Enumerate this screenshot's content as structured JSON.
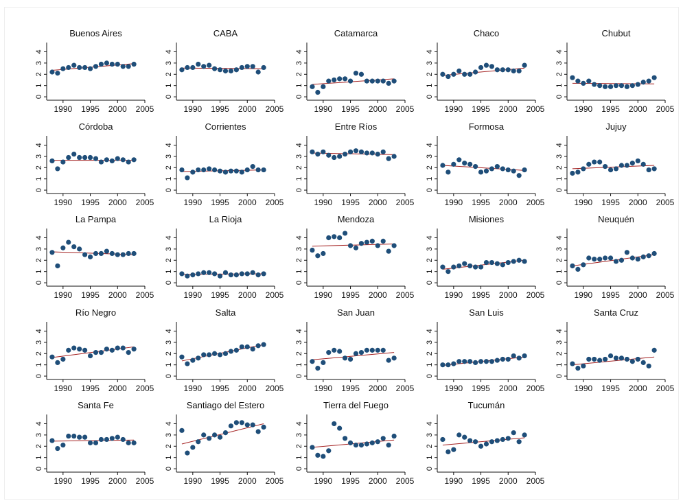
{
  "chart_data": {
    "type": "scatter",
    "layout": "small-multiples",
    "x_ticks": [
      1990,
      1995,
      2000,
      2005
    ],
    "y_ticks": [
      0,
      1,
      2,
      3,
      4
    ],
    "xlim": [
      1987,
      2005
    ],
    "ylim": [
      -0.3,
      4.7
    ],
    "years": [
      1988,
      1989,
      1990,
      1991,
      1992,
      1993,
      1994,
      1995,
      1996,
      1997,
      1998,
      1999,
      2000,
      2001,
      2002,
      2003
    ],
    "colors": {
      "marker": "#1f4e79",
      "fit_line": "#a32020",
      "axis": "#111111"
    },
    "panels": [
      {
        "name": "Buenos Aires",
        "values": [
          2.2,
          2.1,
          2.5,
          2.6,
          2.8,
          2.6,
          2.6,
          2.5,
          2.7,
          2.9,
          3.0,
          2.9,
          2.9,
          2.7,
          2.7,
          2.9
        ],
        "fit": [
          2.35,
          2.95
        ]
      },
      {
        "name": "CABA",
        "values": [
          2.4,
          2.6,
          2.6,
          2.9,
          2.7,
          2.8,
          2.5,
          2.4,
          2.3,
          2.3,
          2.4,
          2.6,
          2.7,
          2.7,
          2.2,
          2.6
        ],
        "fit": [
          2.55,
          2.5
        ]
      },
      {
        "name": "Catamarca",
        "values": [
          0.9,
          0.4,
          0.9,
          1.4,
          1.5,
          1.6,
          1.6,
          1.4,
          2.1,
          2.0,
          1.4,
          1.4,
          1.4,
          1.4,
          1.2,
          1.4
        ],
        "fit": [
          1.1,
          1.6
        ]
      },
      {
        "name": "Chaco",
        "values": [
          2.0,
          1.8,
          2.0,
          2.3,
          2.0,
          2.0,
          2.2,
          2.6,
          2.8,
          2.7,
          2.4,
          2.4,
          2.4,
          2.3,
          2.3,
          2.8
        ],
        "fit": [
          1.9,
          2.55
        ]
      },
      {
        "name": "Chubut",
        "values": [
          1.7,
          1.4,
          1.2,
          1.4,
          1.1,
          1.0,
          0.9,
          0.9,
          1.0,
          1.0,
          0.9,
          1.0,
          1.1,
          1.3,
          1.4,
          1.7
        ],
        "fit": [
          1.2,
          1.15
        ]
      },
      {
        "name": "Córdoba",
        "values": [
          2.6,
          1.9,
          2.5,
          2.9,
          3.2,
          2.9,
          2.9,
          2.9,
          2.8,
          2.5,
          2.7,
          2.6,
          2.8,
          2.7,
          2.5,
          2.7
        ],
        "fit": [
          2.65,
          2.65
        ]
      },
      {
        "name": "Corrientes",
        "values": [
          1.8,
          1.1,
          1.6,
          1.8,
          1.8,
          1.9,
          1.8,
          1.7,
          1.6,
          1.7,
          1.7,
          1.6,
          1.8,
          2.1,
          1.8,
          1.8
        ],
        "fit": [
          1.65,
          1.8
        ]
      },
      {
        "name": "Entre Ríos",
        "values": [
          3.4,
          3.2,
          3.4,
          3.1,
          2.9,
          3.0,
          3.2,
          3.4,
          3.5,
          3.4,
          3.3,
          3.3,
          3.2,
          3.4,
          2.8,
          3.0
        ],
        "fit": [
          3.3,
          3.15
        ]
      },
      {
        "name": "Formosa",
        "values": [
          2.2,
          1.6,
          2.3,
          2.7,
          2.4,
          2.3,
          2.1,
          1.6,
          1.7,
          1.9,
          2.1,
          1.9,
          1.8,
          1.7,
          1.3,
          1.8
        ],
        "fit": [
          2.2,
          1.75
        ]
      },
      {
        "name": "Jujuy",
        "values": [
          1.5,
          1.6,
          1.9,
          2.3,
          2.5,
          2.5,
          2.1,
          1.8,
          1.9,
          2.2,
          2.2,
          2.4,
          2.6,
          2.3,
          1.8,
          1.9
        ],
        "fit": [
          1.9,
          2.2
        ]
      },
      {
        "name": "La Pampa",
        "values": [
          2.7,
          1.5,
          3.1,
          3.6,
          3.2,
          3.0,
          2.5,
          2.3,
          2.6,
          2.6,
          2.8,
          2.6,
          2.5,
          2.5,
          2.6,
          2.6
        ],
        "fit": [
          2.75,
          2.5
        ]
      },
      {
        "name": "La Rioja",
        "values": [
          0.8,
          0.6,
          0.7,
          0.8,
          0.9,
          0.9,
          0.8,
          0.6,
          0.9,
          0.7,
          0.7,
          0.8,
          0.8,
          0.9,
          0.7,
          0.8
        ],
        "fit": [
          0.75,
          0.8
        ]
      },
      {
        "name": "Mendoza",
        "values": [
          2.9,
          2.4,
          2.6,
          4.0,
          4.1,
          4.0,
          4.4,
          3.3,
          3.1,
          3.5,
          3.6,
          3.7,
          3.3,
          3.7,
          2.8,
          3.3
        ],
        "fit": [
          3.25,
          3.45
        ]
      },
      {
        "name": "Misiones",
        "values": [
          1.4,
          1.0,
          1.4,
          1.5,
          1.7,
          1.5,
          1.4,
          1.4,
          1.8,
          1.8,
          1.7,
          1.6,
          1.8,
          1.9,
          2.0,
          1.9
        ],
        "fit": [
          1.2,
          2.0
        ]
      },
      {
        "name": "Neuquén",
        "values": [
          1.5,
          1.2,
          1.6,
          2.2,
          2.1,
          2.1,
          2.2,
          2.2,
          1.9,
          2.0,
          2.7,
          2.2,
          2.1,
          2.3,
          2.4,
          2.6
        ],
        "fit": [
          1.5,
          2.5
        ]
      },
      {
        "name": "Río Negro",
        "values": [
          1.7,
          1.2,
          1.5,
          2.3,
          2.5,
          2.4,
          2.3,
          1.8,
          2.1,
          2.1,
          2.4,
          2.3,
          2.5,
          2.5,
          2.1,
          2.4
        ],
        "fit": [
          1.65,
          2.6
        ]
      },
      {
        "name": "Salta",
        "values": [
          1.7,
          1.1,
          1.4,
          1.6,
          1.9,
          1.9,
          2.0,
          1.9,
          2.0,
          2.2,
          2.3,
          2.6,
          2.6,
          2.4,
          2.7,
          2.8
        ],
        "fit": [
          1.35,
          2.8
        ]
      },
      {
        "name": "San Juan",
        "values": [
          1.3,
          0.7,
          1.2,
          2.1,
          2.3,
          2.2,
          1.6,
          1.5,
          2.0,
          2.1,
          2.3,
          2.3,
          2.3,
          2.3,
          1.4,
          1.6
        ],
        "fit": [
          1.45,
          2.1
        ]
      },
      {
        "name": "San Luis",
        "values": [
          1.0,
          1.0,
          1.1,
          1.3,
          1.3,
          1.3,
          1.2,
          1.3,
          1.3,
          1.3,
          1.4,
          1.5,
          1.5,
          1.8,
          1.6,
          1.8
        ],
        "fit": [
          0.95,
          1.7
        ]
      },
      {
        "name": "Santa Cruz",
        "values": [
          1.1,
          0.7,
          0.9,
          1.5,
          1.5,
          1.4,
          1.5,
          1.8,
          1.6,
          1.6,
          1.5,
          1.3,
          1.5,
          1.2,
          0.9,
          2.3
        ],
        "fit": [
          1.0,
          1.7
        ]
      },
      {
        "name": "Santa Fe",
        "values": [
          2.5,
          1.8,
          2.1,
          2.9,
          2.9,
          2.8,
          2.8,
          2.3,
          2.3,
          2.6,
          2.6,
          2.7,
          2.8,
          2.6,
          2.3,
          2.3
        ],
        "fit": [
          2.45,
          2.55
        ]
      },
      {
        "name": "Santiago del Estero",
        "values": [
          3.4,
          1.4,
          1.9,
          2.4,
          3.0,
          2.7,
          3.0,
          2.8,
          3.2,
          3.8,
          4.1,
          4.1,
          3.9,
          3.9,
          3.3,
          3.7
        ],
        "fit": [
          2.2,
          4.0
        ]
      },
      {
        "name": "Tierra del Fuego",
        "values": [
          1.9,
          1.2,
          1.1,
          1.6,
          4.0,
          3.6,
          2.7,
          2.3,
          2.1,
          2.1,
          2.2,
          2.3,
          2.4,
          2.7,
          2.1,
          2.9
        ],
        "fit": [
          1.9,
          2.55
        ]
      },
      {
        "name": "Tucumán",
        "values": [
          2.6,
          1.5,
          1.7,
          3.0,
          2.8,
          2.5,
          2.4,
          2.0,
          2.2,
          2.4,
          2.5,
          2.6,
          2.7,
          3.2,
          2.4,
          3.0
        ],
        "fit": [
          2.1,
          2.75
        ]
      }
    ]
  }
}
